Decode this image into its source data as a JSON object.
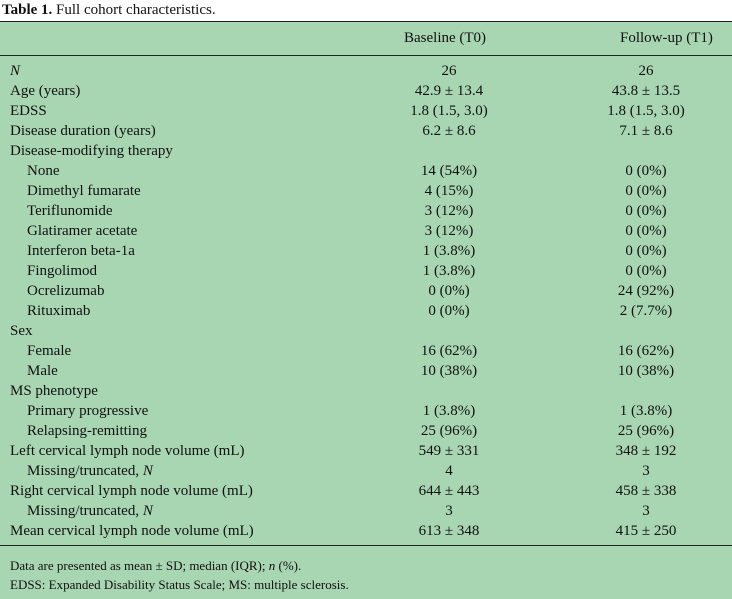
{
  "table": {
    "label": "Table 1.",
    "title": "Full cohort characteristics.",
    "columns": [
      "Baseline (T0)",
      "Follow-up (T1)"
    ],
    "rows": [
      {
        "label": "N",
        "baseline": "26",
        "followup": "26",
        "italic": true,
        "indent": false
      },
      {
        "label": "Age (years)",
        "baseline": "42.9 ± 13.4",
        "followup": "43.8 ± 13.5",
        "indent": false
      },
      {
        "label": "EDSS",
        "baseline": "1.8 (1.5, 3.0)",
        "followup": "1.8 (1.5, 3.0)",
        "indent": false
      },
      {
        "label": "Disease duration (years)",
        "baseline": "6.2 ± 8.6",
        "followup": "7.1 ± 8.6",
        "indent": false
      },
      {
        "label": "Disease-modifying therapy",
        "baseline": "",
        "followup": "",
        "indent": false
      },
      {
        "label": "None",
        "baseline": "14 (54%)",
        "followup": "0 (0%)",
        "indent": true
      },
      {
        "label": "Dimethyl fumarate",
        "baseline": "4 (15%)",
        "followup": "0 (0%)",
        "indent": true
      },
      {
        "label": "Teriflunomide",
        "baseline": "3 (12%)",
        "followup": "0 (0%)",
        "indent": true
      },
      {
        "label": "Glatiramer acetate",
        "baseline": "3 (12%)",
        "followup": "0 (0%)",
        "indent": true
      },
      {
        "label": "Interferon beta-1a",
        "baseline": "1 (3.8%)",
        "followup": "0 (0%)",
        "indent": true
      },
      {
        "label": "Fingolimod",
        "baseline": "1 (3.8%)",
        "followup": "0 (0%)",
        "indent": true
      },
      {
        "label": "Ocrelizumab",
        "baseline": "0 (0%)",
        "followup": "24 (92%)",
        "indent": true
      },
      {
        "label": "Rituximab",
        "baseline": "0 (0%)",
        "followup": "2 (7.7%)",
        "indent": true
      },
      {
        "label": "Sex",
        "baseline": "",
        "followup": "",
        "indent": false
      },
      {
        "label": "Female",
        "baseline": "16 (62%)",
        "followup": "16 (62%)",
        "indent": true
      },
      {
        "label": "Male",
        "baseline": "10 (38%)",
        "followup": "10 (38%)",
        "indent": true
      },
      {
        "label": "MS phenotype",
        "baseline": "",
        "followup": "",
        "indent": false
      },
      {
        "label": "Primary progressive",
        "baseline": "1 (3.8%)",
        "followup": "1 (3.8%)",
        "indent": true
      },
      {
        "label": "Relapsing-remitting",
        "baseline": "25 (96%)",
        "followup": "25 (96%)",
        "indent": true
      },
      {
        "label": "Left cervical lymph node volume (mL)",
        "baseline": "549 ± 331",
        "followup": "348 ± 192",
        "indent": false
      },
      {
        "label": "Missing/truncated, N",
        "baseline": "4",
        "followup": "3",
        "indent": true
      },
      {
        "label": "Right cervical lymph node volume (mL)",
        "baseline": "644 ± 443",
        "followup": "458 ± 338",
        "indent": false
      },
      {
        "label": "Missing/truncated, N",
        "baseline": "3",
        "followup": "3",
        "indent": true
      },
      {
        "label": "Mean cervical lymph node volume (mL)",
        "baseline": "613 ± 348",
        "followup": "415 ± 250",
        "indent": false
      }
    ],
    "footnotes": [
      "Data are presented as mean ± SD; median (IQR); n (%).",
      "EDSS: Expanded Disability Status Scale; MS: multiple sclerosis."
    ],
    "colors": {
      "panel_background": "#a8d5b2",
      "rule": "#222222"
    }
  }
}
